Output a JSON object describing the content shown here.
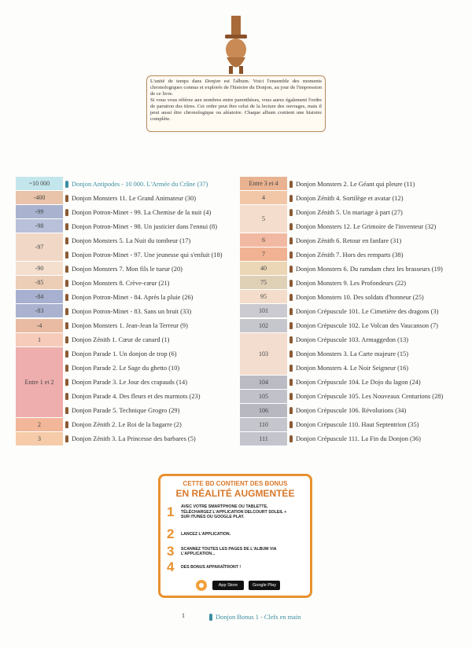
{
  "intro": {
    "paragraph_1": [
      "L'unité de temps dans ",
      "Donjon",
      " est l'album. Voici l'ensemble des moments chronologiques connus et explorés de l'histoire du Donjon, au jour de l'impression de ce livre."
    ],
    "paragraph_2": "Si vous vous référez aux nombres entre parenthèses, vous aurez également l'ordre de parution des titres. Cet ordre peut être celui de la lecture des ouvrages, mais il peut aussi être chronologique ou aléatoire. Chaque album contient une histoire complète."
  },
  "left_table": {
    "rows": [
      {
        "label": "~10 000",
        "titles": [
          "Donjon Antipodes - 10 000. L'Armée du Crâne (37)"
        ]
      },
      {
        "label": "-400",
        "titles": [
          "Donjon Monsters 11. Le Grand Animateur (30)"
        ]
      },
      {
        "label": "-99",
        "titles": [
          "Donjon Potron-Minet - 99. La Chemise de la nuit (4)"
        ]
      },
      {
        "label": "-98",
        "titles": [
          "Donjon Potron-Minet - 98. Un justicier dans l'ennui (8)"
        ]
      },
      {
        "label": "-97",
        "titles": [
          "Donjon Monsters 5. La Nuit du tombeur (17)",
          "Donjon Potron-Minet - 97. Une jeunesse qui s'enfuit (18)"
        ]
      },
      {
        "label": "-90",
        "titles": [
          "Donjon Monsters 7. Mon fils le tueur (20)"
        ]
      },
      {
        "label": "-85",
        "titles": [
          "Donjon Monsters 8. Crève-cœur (21)"
        ]
      },
      {
        "label": "-84",
        "titles": [
          "Donjon Potron-Minet - 84. Après la pluie (26)"
        ]
      },
      {
        "label": "-83",
        "titles": [
          "Donjon Potron-Minet - 83. Sans un bruit (33)"
        ]
      },
      {
        "label": "-4",
        "titles": [
          "Donjon Monsters 1. Jean-Jean la Terreur (9)"
        ]
      },
      {
        "label": "1",
        "titles": [
          "Donjon Zénith 1. Cœur de canard (1)"
        ]
      },
      {
        "label": "Entre 1 et 2",
        "titles": [
          "Donjon Parade 1. Un donjon de trop (6)",
          "Donjon Parade 2. Le Sage du ghetto (10)",
          "Donjon Parade 3. Le Jour des crapauds (14)",
          "Donjon Parade 4. Des fleurs et des marmots (23)",
          "Donjon Parade 5. Technique Grogro (29)"
        ]
      },
      {
        "label": "2",
        "titles": [
          "Donjon Zénith 2. Le Roi de la bagarre (2)"
        ]
      },
      {
        "label": "3",
        "titles": [
          "Donjon Zénith 3. La Princesse des barbares (5)"
        ]
      }
    ]
  },
  "right_table": {
    "rows": [
      {
        "label": "Entre 3 et 4",
        "titles": [
          "Donjon Monsters 2. Le Géant qui pleure (11)"
        ]
      },
      {
        "label": "4",
        "titles": [
          "Donjon Zénith 4. Sortilège et avatar (12)"
        ]
      },
      {
        "label": "5",
        "titles": [
          "Donjon Zénith 5. Un mariage à part (27)",
          "Donjon Monsters 12. Le Grimoire de l'inventeur (32)"
        ]
      },
      {
        "label": "6",
        "titles": [
          "Donjon Zénith 6. Retour en fanfare (31)"
        ]
      },
      {
        "label": "7",
        "titles": [
          "Donjon Zénith 7. Hors des remparts (38)"
        ]
      },
      {
        "label": "40",
        "titles": [
          "Donjon Monsters 6. Du ramdam chez les brasseurs (19)"
        ]
      },
      {
        "label": "75",
        "titles": [
          "Donjon Monsters 9. Les Profondeurs (22)"
        ]
      },
      {
        "label": "95",
        "titles": [
          "Donjon Monsters 10. Des soldats d'honneur (25)"
        ]
      },
      {
        "label": "101",
        "titles": [
          "Donjon Crépuscule 101. Le Cimetière des dragons (3)"
        ]
      },
      {
        "label": "102",
        "titles": [
          "Donjon Crépuscule 102. Le Volcan des Vaucanson (7)"
        ]
      },
      {
        "label": "103",
        "titles": [
          "Donjon Crépuscule 103. Armaggedon (13)",
          "Donjon Monsters 3. La Carte majeure (15)",
          "Donjon Monsters 4. Le Noir Seigneur (16)"
        ]
      },
      {
        "label": "104",
        "titles": [
          "Donjon Crépuscule 104. Le Dojo du lagon (24)"
        ]
      },
      {
        "label": "105",
        "titles": [
          "Donjon Crépuscule 105. Les Nouveaux Centurions (28)"
        ]
      },
      {
        "label": "106",
        "titles": [
          "Donjon Crépuscule 106. Révolutions (34)"
        ]
      },
      {
        "label": "110",
        "titles": [
          "Donjon Crépuscule 110. Haut Septentrion (35)"
        ]
      },
      {
        "label": "111",
        "titles": [
          "Donjon Crépuscule 111. La Fin du Donjon (36)"
        ]
      }
    ]
  },
  "ad": {
    "heading": "CETTE BD CONTIENT DES BONUS",
    "title": "EN RÉALITÉ AUGMENTÉE",
    "steps": [
      {
        "number": "1",
        "text": "AVEC VOTRE SMARTPHONE OU TABLETTE, TÉLÉCHARGEZ L'APPLICATION DELCOURT SOLEIL + SUR ITUNES OU GOOGLE PLAY."
      },
      {
        "number": "2",
        "text": "LANCEZ L'APPLICATION."
      },
      {
        "number": "3",
        "text": "SCANNEZ TOUTES LES PAGES DE L'ALBUM VIA L'APPLICATION..."
      },
      {
        "number": "4",
        "text": "DES BONUS APPARAÎTRONT !"
      }
    ],
    "badges": [
      "App Store",
      "Google Play"
    ]
  },
  "footer": {
    "label": "1",
    "title": "Donjon Bonus 1 - Clefs en main"
  }
}
